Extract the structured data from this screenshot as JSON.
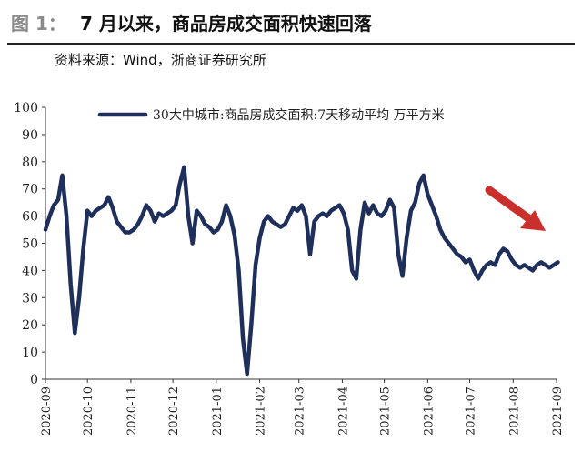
{
  "header": {
    "figure_label": "图 1：",
    "title": "7 月以来，商品房成交面积快速回落",
    "source": "资料来源：Wind，浙商证券研究所"
  },
  "colors": {
    "line": "#1f2f5c",
    "arrow": "#c9302c",
    "axis": "#333333"
  },
  "chart_data": {
    "type": "line",
    "title": "",
    "xlabel": "",
    "ylabel": "",
    "ylim": [
      0,
      100
    ],
    "yticks": [
      "0",
      "10",
      "20",
      "30",
      "40",
      "50",
      "60",
      "70",
      "80",
      "90",
      "100"
    ],
    "xticks": [
      "2020-09",
      "2020-10",
      "2020-11",
      "2020-12",
      "2021-01",
      "2021-02",
      "2021-03",
      "2021-04",
      "2021-05",
      "2021-06",
      "2021-07",
      "2021-08",
      "2021-09"
    ],
    "grid": false,
    "legend_position": "top",
    "series": [
      {
        "name": "30大中城市:商品房成交面积:7天移动平均 万平方米",
        "x": [
          "2020-09-01",
          "2020-09-04",
          "2020-09-07",
          "2020-09-10",
          "2020-09-13",
          "2020-09-16",
          "2020-09-19",
          "2020-09-22",
          "2020-09-25",
          "2020-09-28",
          "2020-10-01",
          "2020-10-04",
          "2020-10-07",
          "2020-10-10",
          "2020-10-13",
          "2020-10-16",
          "2020-10-19",
          "2020-10-22",
          "2020-10-25",
          "2020-10-28",
          "2020-10-31",
          "2020-11-03",
          "2020-11-06",
          "2020-11-09",
          "2020-11-12",
          "2020-11-15",
          "2020-11-18",
          "2020-11-21",
          "2020-11-24",
          "2020-11-27",
          "2020-11-30",
          "2020-12-03",
          "2020-12-06",
          "2020-12-09",
          "2020-12-12",
          "2020-12-15",
          "2020-12-18",
          "2020-12-21",
          "2020-12-24",
          "2020-12-27",
          "2020-12-30",
          "2021-01-02",
          "2021-01-05",
          "2021-01-08",
          "2021-01-11",
          "2021-01-14",
          "2021-01-17",
          "2021-01-20",
          "2021-01-23",
          "2021-01-26",
          "2021-01-29",
          "2021-02-01",
          "2021-02-04",
          "2021-02-07",
          "2021-02-10",
          "2021-02-13",
          "2021-02-16",
          "2021-02-19",
          "2021-02-22",
          "2021-02-25",
          "2021-02-28",
          "2021-03-03",
          "2021-03-06",
          "2021-03-09",
          "2021-03-12",
          "2021-03-15",
          "2021-03-18",
          "2021-03-21",
          "2021-03-24",
          "2021-03-27",
          "2021-03-30",
          "2021-04-02",
          "2021-04-05",
          "2021-04-08",
          "2021-04-11",
          "2021-04-14",
          "2021-04-17",
          "2021-04-20",
          "2021-04-23",
          "2021-04-26",
          "2021-04-29",
          "2021-05-02",
          "2021-05-05",
          "2021-05-08",
          "2021-05-11",
          "2021-05-14",
          "2021-05-17",
          "2021-05-20",
          "2021-05-23",
          "2021-05-26",
          "2021-05-29",
          "2021-06-01",
          "2021-06-04",
          "2021-06-07",
          "2021-06-10",
          "2021-06-13",
          "2021-06-16",
          "2021-06-19",
          "2021-06-22",
          "2021-06-25",
          "2021-06-28",
          "2021-07-01",
          "2021-07-04",
          "2021-07-07",
          "2021-07-10",
          "2021-07-13",
          "2021-07-16",
          "2021-07-19",
          "2021-07-22",
          "2021-07-25",
          "2021-07-28",
          "2021-07-31",
          "2021-08-03",
          "2021-08-06",
          "2021-08-09",
          "2021-08-12",
          "2021-08-15",
          "2021-08-18",
          "2021-08-21",
          "2021-08-24",
          "2021-08-27",
          "2021-08-30",
          "2021-09-02"
        ],
        "values": [
          55,
          60,
          64,
          66,
          75,
          60,
          35,
          17,
          30,
          48,
          62,
          60,
          62,
          63,
          64,
          67,
          63,
          58,
          56,
          54,
          54,
          55,
          57,
          60,
          64,
          62,
          58,
          61,
          60,
          61,
          62,
          64,
          72,
          78,
          60,
          50,
          62,
          60,
          57,
          56,
          54,
          55,
          58,
          64,
          60,
          53,
          40,
          15,
          2,
          20,
          42,
          52,
          58,
          60,
          58,
          57,
          56,
          57,
          60,
          63,
          62,
          64,
          60,
          46,
          58,
          60,
          61,
          60,
          62,
          63,
          64,
          61,
          55,
          40,
          37,
          55,
          65,
          61,
          64,
          61,
          60,
          62,
          66,
          63,
          46,
          38,
          52,
          62,
          65,
          72,
          75,
          68,
          64,
          60,
          55,
          52,
          50,
          48,
          46,
          45,
          43,
          44,
          40,
          37,
          40,
          42,
          43,
          42,
          46,
          48,
          47,
          44,
          42,
          41,
          42,
          41,
          40,
          42,
          43,
          42,
          41,
          42,
          43
        ]
      }
    ],
    "annotations": [
      {
        "type": "arrow",
        "description": "red arrow pointing down-right toward recent decline"
      }
    ]
  }
}
